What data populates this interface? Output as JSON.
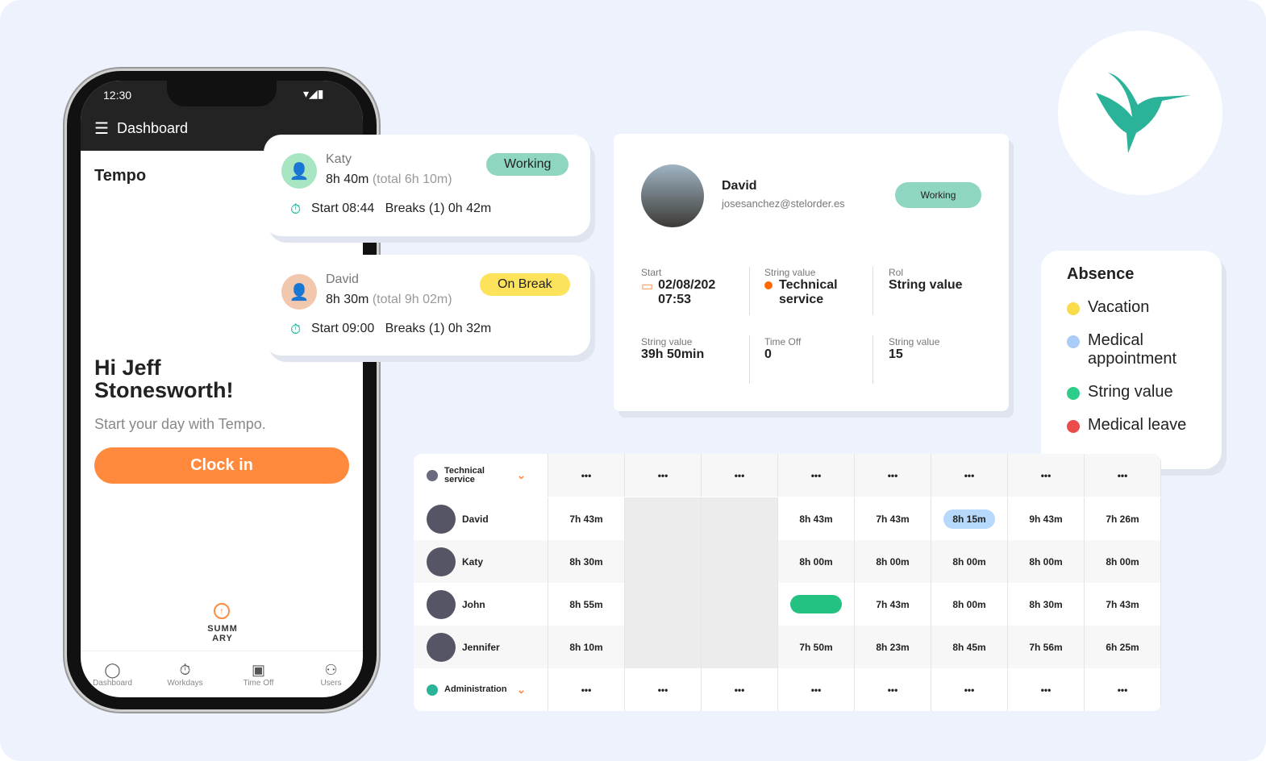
{
  "phone": {
    "time": "12:30",
    "title": "Dashboard",
    "section": "Tempo",
    "greeting": "Hi Jeff Stonesworth!",
    "subtitle": "Start your day with Tempo.",
    "clock_in": "Clock in",
    "summary": "SUMM ARY",
    "nav": [
      "Dashboard",
      "Workdays",
      "Time Off",
      "Users"
    ]
  },
  "status_cards": [
    {
      "name": "Katy",
      "hours": "8h 40m",
      "total": "(total 6h 10m)",
      "status": "Working",
      "start": "Start 08:44",
      "breaks": "Breaks (1) 0h 42m"
    },
    {
      "name": "David",
      "hours": "8h 30m",
      "total": "(total 9h 02m)",
      "status": "On Break",
      "start": "Start 09:00",
      "breaks": "Breaks (1) 0h 32m"
    }
  ],
  "profile": {
    "name": "David",
    "email": "josesanchez@stelorder.es",
    "status": "Working",
    "fields": [
      {
        "label": "Start",
        "value": "02/08/202 07:53"
      },
      {
        "label": "String value",
        "value": "Technical service"
      },
      {
        "label": "Rol",
        "value": "String value"
      },
      {
        "label": "String value",
        "value": "39h 50min"
      },
      {
        "label": "Time Off",
        "value": "0"
      },
      {
        "label": "String value",
        "value": "15"
      }
    ]
  },
  "absence": {
    "title": "Absence",
    "items": [
      {
        "label": "Vacation",
        "color": "#f9dc4a"
      },
      {
        "label": "Medical appointment",
        "color": "#a9cdf7"
      },
      {
        "label": "String value",
        "color": "#2ecc8a"
      },
      {
        "label": "Medical leave",
        "color": "#ec4b4b"
      }
    ]
  },
  "table": {
    "groups": [
      {
        "name": "Technical service",
        "color": "#6b6b80"
      },
      {
        "name": "Administration",
        "color": "#2bb39a"
      }
    ],
    "more": "•••",
    "rows": [
      {
        "name": "David",
        "cells": [
          "7h 43m",
          "",
          "",
          "8h 43m",
          "7h 43m",
          "8h 15m",
          "9h 43m",
          "7h 26m"
        ]
      },
      {
        "name": "Katy",
        "cells": [
          "8h 30m",
          "",
          "",
          "8h 00m",
          "8h 00m",
          "8h 00m",
          "8h 00m",
          "8h 00m"
        ]
      },
      {
        "name": "John",
        "cells": [
          "8h 55m",
          "",
          "",
          "",
          "7h 43m",
          "8h 00m",
          "8h 30m",
          "7h 43m"
        ]
      },
      {
        "name": "Jennifer",
        "cells": [
          "8h 10m",
          "",
          "",
          "7h 50m",
          "8h 23m",
          "8h 45m",
          "7h 56m",
          "6h 25m"
        ]
      }
    ]
  },
  "colors": {
    "accent": "#ff8a3d",
    "brand": "#2bb39a",
    "working": "#8fd6c2",
    "on_break": "#fde35c"
  }
}
